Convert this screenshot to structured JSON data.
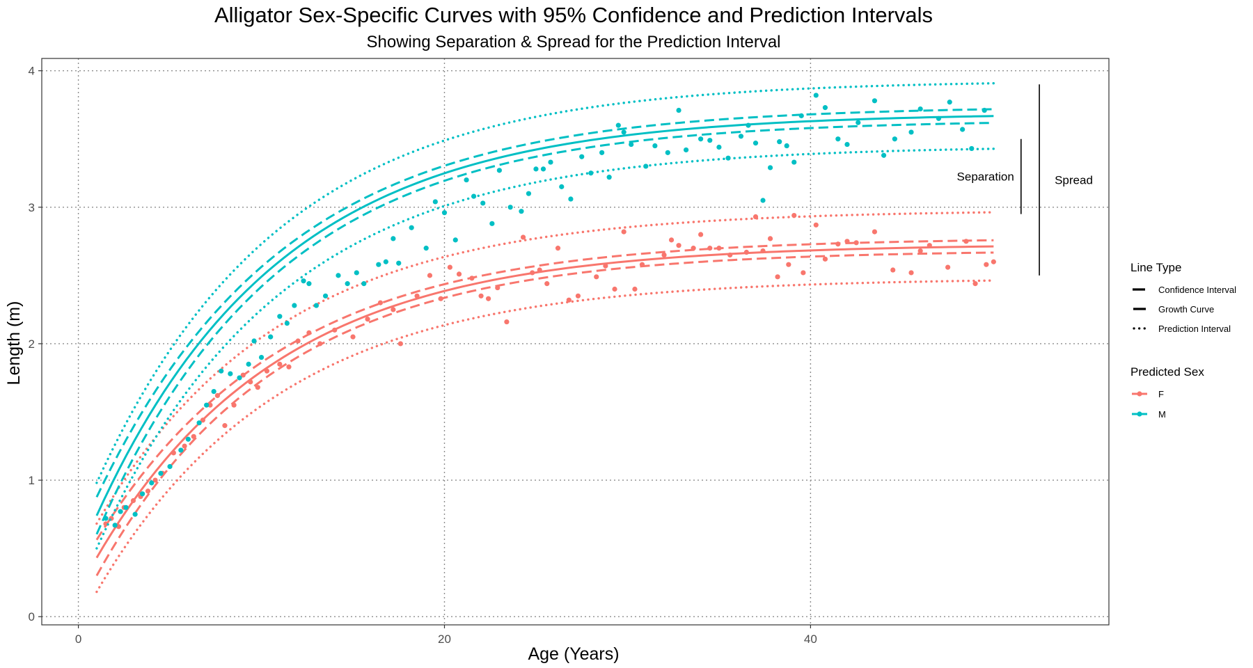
{
  "chart_data": {
    "type": "line",
    "title": "Alligator Sex-Specific Curves with 95% Confidence and Prediction Intervals",
    "subtitle": "Showing Separation & Spread for the Prediction Interval",
    "xlabel": "Age (Years)",
    "ylabel": "Length (m)",
    "xlim": [
      -2,
      56.3
    ],
    "ylim": [
      -0.06,
      4.09
    ],
    "x_ticks": [
      0,
      20,
      40
    ],
    "x_tick_labels": [
      "0",
      "20",
      "40"
    ],
    "y_ticks": [
      0,
      1,
      2,
      3,
      4
    ],
    "y_tick_labels": [
      "0",
      "1",
      "2",
      "3",
      "4"
    ],
    "grid": true,
    "legend_placement": "right",
    "colors": {
      "F": "#F8766D",
      "M": "#00BFC4",
      "panel_border": "#333333",
      "grid": "#8c8c8c"
    },
    "legend": {
      "line_type": {
        "title": "Line Type",
        "items": [
          {
            "label": "Confidence Interval",
            "style": "dashed"
          },
          {
            "label": "Growth Curve",
            "style": "solid"
          },
          {
            "label": "Prediction Interval",
            "style": "dotted"
          }
        ]
      },
      "sex": {
        "title": "Predicted Sex",
        "items": [
          {
            "label": "F",
            "color": "#F8766D"
          },
          {
            "label": "M",
            "color": "#00BFC4"
          }
        ]
      }
    },
    "annotations": [
      {
        "label": "Separation",
        "x": 51.5,
        "y_from": 2.95,
        "y_to": 3.5
      },
      {
        "label": "Spread",
        "x": 52.5,
        "y_from": 2.5,
        "y_to": 3.9
      }
    ],
    "series": [
      {
        "name": "F",
        "growth_curve": {
          "linf": 2.73,
          "l0": 0.19,
          "k": 0.1
        },
        "confidence_interval_half_width": 0.045,
        "prediction_interval_half_width": 0.25,
        "x_range": [
          1,
          50
        ],
        "points": [
          [
            1.5,
            0.68
          ],
          [
            1.8,
            0.72
          ],
          [
            2.2,
            0.66
          ],
          [
            2.5,
            0.8
          ],
          [
            3.0,
            0.85
          ],
          [
            3.4,
            0.88
          ],
          [
            3.8,
            0.92
          ],
          [
            4.2,
            1.0
          ],
          [
            4.6,
            1.05
          ],
          [
            5.2,
            1.2
          ],
          [
            5.8,
            1.25
          ],
          [
            6.3,
            1.32
          ],
          [
            6.8,
            1.44
          ],
          [
            7.2,
            1.55
          ],
          [
            7.6,
            1.62
          ],
          [
            8.0,
            1.4
          ],
          [
            8.5,
            1.55
          ],
          [
            9.0,
            1.77
          ],
          [
            9.4,
            1.72
          ],
          [
            9.8,
            1.68
          ],
          [
            10.3,
            1.8
          ],
          [
            11.0,
            1.85
          ],
          [
            11.5,
            1.83
          ],
          [
            12.0,
            2.02
          ],
          [
            12.6,
            2.08
          ],
          [
            13.2,
            2.0
          ],
          [
            14.0,
            2.1
          ],
          [
            15.0,
            2.05
          ],
          [
            15.8,
            2.18
          ],
          [
            16.5,
            2.3
          ],
          [
            17.2,
            2.25
          ],
          [
            17.6,
            2.0
          ],
          [
            18.5,
            2.35
          ],
          [
            19.2,
            2.5
          ],
          [
            19.8,
            2.33
          ],
          [
            20.3,
            2.56
          ],
          [
            20.8,
            2.51
          ],
          [
            21.5,
            2.48
          ],
          [
            22.0,
            2.35
          ],
          [
            22.4,
            2.33
          ],
          [
            22.9,
            2.41
          ],
          [
            23.4,
            2.16
          ],
          [
            24.3,
            2.78
          ],
          [
            24.8,
            2.52
          ],
          [
            25.2,
            2.54
          ],
          [
            25.6,
            2.44
          ],
          [
            26.2,
            2.7
          ],
          [
            26.8,
            2.32
          ],
          [
            27.3,
            2.35
          ],
          [
            28.3,
            2.49
          ],
          [
            28.8,
            2.57
          ],
          [
            29.3,
            2.4
          ],
          [
            29.8,
            2.82
          ],
          [
            30.4,
            2.4
          ],
          [
            30.8,
            2.58
          ],
          [
            32.0,
            2.65
          ],
          [
            32.4,
            2.76
          ],
          [
            32.8,
            2.72
          ],
          [
            33.6,
            2.7
          ],
          [
            34.0,
            2.8
          ],
          [
            34.5,
            2.7
          ],
          [
            35.0,
            2.7
          ],
          [
            35.6,
            2.65
          ],
          [
            36.5,
            2.67
          ],
          [
            37.0,
            2.93
          ],
          [
            37.4,
            2.68
          ],
          [
            37.8,
            2.77
          ],
          [
            38.2,
            2.49
          ],
          [
            38.8,
            2.58
          ],
          [
            39.1,
            2.94
          ],
          [
            39.6,
            2.52
          ],
          [
            40.3,
            2.87
          ],
          [
            40.8,
            2.62
          ],
          [
            41.5,
            2.73
          ],
          [
            42.0,
            2.75
          ],
          [
            42.5,
            2.74
          ],
          [
            43.5,
            2.82
          ],
          [
            44.5,
            2.54
          ],
          [
            45.5,
            2.52
          ],
          [
            46.0,
            2.68
          ],
          [
            46.5,
            2.72
          ],
          [
            47.5,
            2.56
          ],
          [
            48.5,
            2.75
          ],
          [
            49.0,
            2.44
          ],
          [
            49.6,
            2.58
          ],
          [
            50.0,
            2.6
          ]
        ]
      },
      {
        "name": "M",
        "growth_curve": {
          "linf": 3.69,
          "l0": 0.43,
          "k": 0.1
        },
        "confidence_interval_half_width": 0.05,
        "prediction_interval_half_width": 0.24,
        "x_range": [
          1,
          50
        ],
        "points": [
          [
            1.5,
            0.72
          ],
          [
            2.0,
            0.67
          ],
          [
            2.3,
            0.77
          ],
          [
            2.6,
            0.8
          ],
          [
            3.1,
            0.75
          ],
          [
            3.5,
            0.9
          ],
          [
            4.0,
            0.98
          ],
          [
            4.5,
            1.05
          ],
          [
            5.0,
            1.1
          ],
          [
            5.6,
            1.22
          ],
          [
            6.0,
            1.3
          ],
          [
            6.6,
            1.42
          ],
          [
            7.0,
            1.55
          ],
          [
            7.4,
            1.65
          ],
          [
            7.8,
            1.8
          ],
          [
            8.3,
            1.78
          ],
          [
            8.8,
            1.75
          ],
          [
            9.3,
            1.85
          ],
          [
            9.6,
            2.02
          ],
          [
            10.0,
            1.9
          ],
          [
            10.5,
            2.05
          ],
          [
            11.0,
            2.2
          ],
          [
            11.4,
            2.15
          ],
          [
            11.8,
            2.28
          ],
          [
            12.3,
            2.46
          ],
          [
            12.6,
            2.44
          ],
          [
            13.0,
            2.28
          ],
          [
            13.5,
            2.35
          ],
          [
            14.2,
            2.5
          ],
          [
            14.7,
            2.44
          ],
          [
            15.2,
            2.52
          ],
          [
            15.6,
            2.44
          ],
          [
            16.4,
            2.58
          ],
          [
            16.8,
            2.6
          ],
          [
            17.2,
            2.77
          ],
          [
            17.5,
            2.59
          ],
          [
            18.2,
            2.85
          ],
          [
            19.0,
            2.7
          ],
          [
            19.5,
            3.04
          ],
          [
            20.0,
            2.96
          ],
          [
            20.6,
            2.76
          ],
          [
            21.2,
            3.2
          ],
          [
            21.6,
            3.08
          ],
          [
            22.1,
            3.03
          ],
          [
            22.6,
            2.88
          ],
          [
            23.0,
            3.27
          ],
          [
            23.6,
            3.0
          ],
          [
            24.2,
            2.97
          ],
          [
            24.6,
            3.1
          ],
          [
            25.0,
            3.28
          ],
          [
            25.4,
            3.28
          ],
          [
            25.8,
            3.33
          ],
          [
            26.4,
            3.15
          ],
          [
            26.9,
            3.06
          ],
          [
            27.5,
            3.37
          ],
          [
            28.0,
            3.25
          ],
          [
            28.6,
            3.4
          ],
          [
            29.0,
            3.22
          ],
          [
            29.5,
            3.6
          ],
          [
            29.8,
            3.55
          ],
          [
            30.2,
            3.46
          ],
          [
            31.0,
            3.3
          ],
          [
            31.5,
            3.45
          ],
          [
            32.2,
            3.4
          ],
          [
            32.8,
            3.71
          ],
          [
            33.2,
            3.42
          ],
          [
            34.0,
            3.5
          ],
          [
            34.5,
            3.49
          ],
          [
            35.0,
            3.44
          ],
          [
            35.5,
            3.36
          ],
          [
            36.2,
            3.52
          ],
          [
            36.6,
            3.6
          ],
          [
            37.0,
            3.47
          ],
          [
            37.4,
            3.05
          ],
          [
            37.8,
            3.29
          ],
          [
            38.3,
            3.48
          ],
          [
            38.7,
            3.45
          ],
          [
            39.1,
            3.33
          ],
          [
            39.5,
            3.67
          ],
          [
            40.3,
            3.82
          ],
          [
            40.8,
            3.73
          ],
          [
            41.5,
            3.5
          ],
          [
            42.0,
            3.46
          ],
          [
            42.6,
            3.62
          ],
          [
            43.5,
            3.78
          ],
          [
            44.0,
            3.38
          ],
          [
            44.6,
            3.5
          ],
          [
            45.5,
            3.55
          ],
          [
            46.0,
            3.72
          ],
          [
            47.0,
            3.65
          ],
          [
            47.6,
            3.77
          ],
          [
            48.3,
            3.57
          ],
          [
            48.8,
            3.43
          ],
          [
            49.5,
            3.71
          ]
        ]
      }
    ]
  }
}
